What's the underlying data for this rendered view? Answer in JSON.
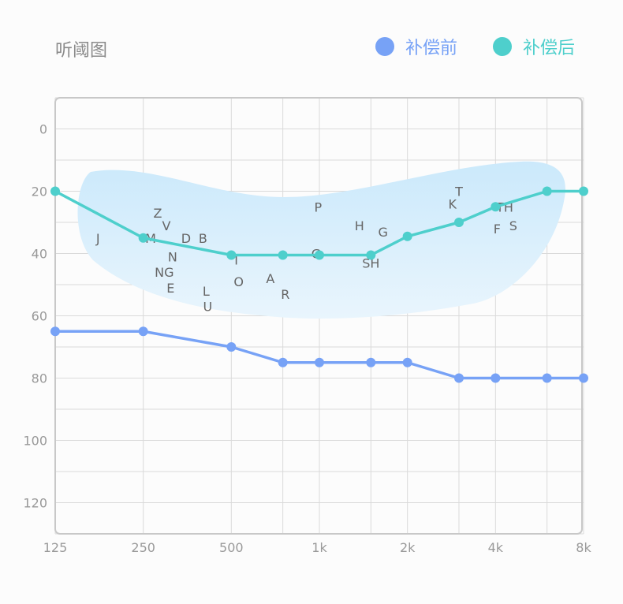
{
  "header": {
    "title": "听阈图",
    "legend": [
      {
        "label": "补偿前",
        "color": "#77a2f6"
      },
      {
        "label": "补偿后",
        "color": "#4ecfcc"
      }
    ]
  },
  "chart_data": {
    "type": "line",
    "title": "听阈图",
    "x_ticks": [
      "125",
      "250",
      "500",
      "1k",
      "2k",
      "4k",
      "8k"
    ],
    "x": [
      125,
      250,
      500,
      750,
      1000,
      1500,
      2000,
      3000,
      4000,
      6000,
      8000
    ],
    "y_ticks": [
      0,
      20,
      40,
      60,
      80,
      100,
      120
    ],
    "ylim": [
      -10,
      130
    ],
    "y_reversed": true,
    "x_scale": "log2",
    "grid": true,
    "legend_position": "top-right",
    "series": [
      {
        "name": "补偿前",
        "color": "#77a2f6",
        "values": [
          65,
          65,
          70,
          75,
          75,
          75,
          75,
          80,
          80,
          80,
          80
        ]
      },
      {
        "name": "补偿后",
        "color": "#4ecfcc",
        "values": [
          20,
          35,
          40.5,
          40.5,
          40.5,
          40.5,
          34.5,
          30,
          25,
          20,
          20
        ]
      }
    ],
    "speech_banana": {
      "color": "#cde9fa"
    },
    "phonemes": [
      {
        "text": "J",
        "f": 175,
        "db": 35
      },
      {
        "text": "Z",
        "f": 280,
        "db": 27
      },
      {
        "text": "V",
        "f": 300,
        "db": 31
      },
      {
        "text": "M",
        "f": 265,
        "db": 35
      },
      {
        "text": "D",
        "f": 350,
        "db": 35
      },
      {
        "text": "B",
        "f": 400,
        "db": 35
      },
      {
        "text": "N",
        "f": 315,
        "db": 41
      },
      {
        "text": "NG",
        "f": 295,
        "db": 46
      },
      {
        "text": "E",
        "f": 310,
        "db": 51
      },
      {
        "text": "L",
        "f": 410,
        "db": 52
      },
      {
        "text": "U",
        "f": 415,
        "db": 57
      },
      {
        "text": "I",
        "f": 520,
        "db": 42
      },
      {
        "text": "O",
        "f": 530,
        "db": 49
      },
      {
        "text": "A",
        "f": 680,
        "db": 48
      },
      {
        "text": "R",
        "f": 765,
        "db": 53
      },
      {
        "text": "P",
        "f": 990,
        "db": 25
      },
      {
        "text": "G",
        "f": 975,
        "db": 40
      },
      {
        "text": "H",
        "f": 1370,
        "db": 31
      },
      {
        "text": "G",
        "f": 1650,
        "db": 33
      },
      {
        "text": "SH",
        "f": 1500,
        "db": 43
      },
      {
        "text": "T",
        "f": 3000,
        "db": 20
      },
      {
        "text": "K",
        "f": 2850,
        "db": 24
      },
      {
        "text": "TH",
        "f": 4300,
        "db": 25
      },
      {
        "text": "F",
        "f": 4050,
        "db": 32
      },
      {
        "text": "S",
        "f": 4600,
        "db": 31
      }
    ]
  }
}
